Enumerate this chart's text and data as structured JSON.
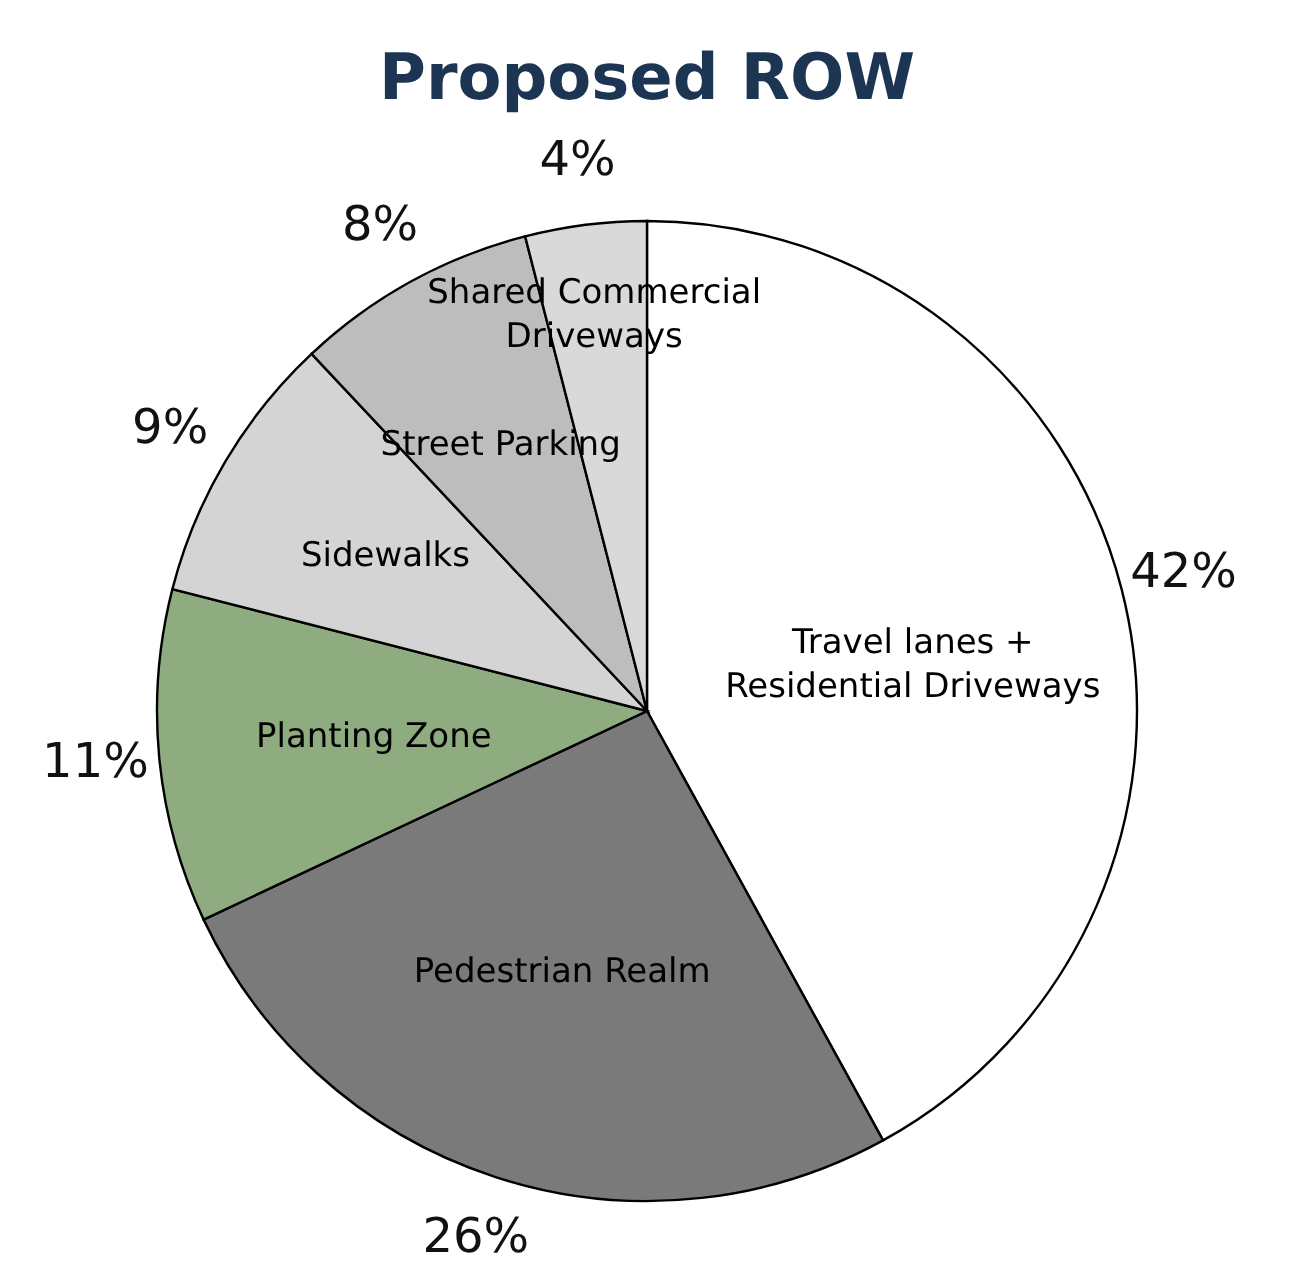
{
  "chart_data": {
    "type": "pie",
    "title": "Proposed ROW",
    "categories": [
      "Travel lanes + Residential Driveways",
      "Pedestrian Realm",
      "Planting Zone",
      "Sidewalks",
      "Street Parking",
      "Shared Commercial Driveways"
    ],
    "values": [
      42,
      26,
      11,
      9,
      8,
      4
    ],
    "colors": [
      "#ffffff",
      "#7a7a7a",
      "#8fab80",
      "#d4d4d4",
      "#bdbdbd",
      "#d9d9d9"
    ],
    "value_labels": [
      "42%",
      "26%",
      "11%",
      "9%",
      "8%",
      "4%"
    ],
    "legend": false
  }
}
